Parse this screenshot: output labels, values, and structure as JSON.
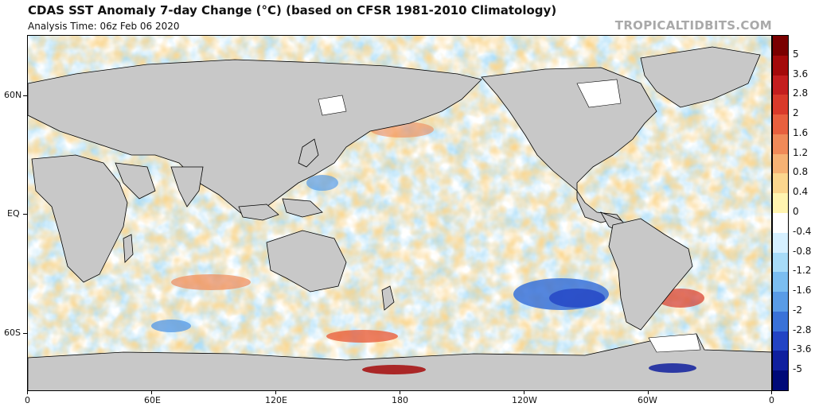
{
  "title": "CDAS SST Anomaly 7-day Change (°C) (based on CFSR 1981-2010 Climatology)",
  "analysis_time": "Analysis Time: 06z Feb 06 2020",
  "brand": "TROPICALTIDBITS.COM",
  "map": {
    "lat_labels": [
      "60N",
      "EQ",
      "60S"
    ],
    "lon_labels": [
      "0",
      "60E",
      "120E",
      "180",
      "120W",
      "60W",
      "0"
    ],
    "land_color": "#c8c8c8",
    "border_color": "#000000"
  },
  "colorbar": {
    "labels": [
      "5",
      "3.6",
      "2.8",
      "2",
      "1.6",
      "1.2",
      "0.8",
      "0.4",
      "0",
      "-0.4",
      "-0.8",
      "-1.2",
      "-1.6",
      "-2",
      "-2.8",
      "-3.6",
      "-5"
    ],
    "colors": [
      "#7a0000",
      "#a40a0a",
      "#c41e1e",
      "#d93a2a",
      "#e8603e",
      "#f08a58",
      "#f6b274",
      "#fbd68e",
      "#fff4b0",
      "#ffffff",
      "#d6f0ff",
      "#a8dcf8",
      "#7cbef0",
      "#5a9ce6",
      "#3a72d8",
      "#2244c4",
      "#10209e",
      "#000a78"
    ]
  }
}
